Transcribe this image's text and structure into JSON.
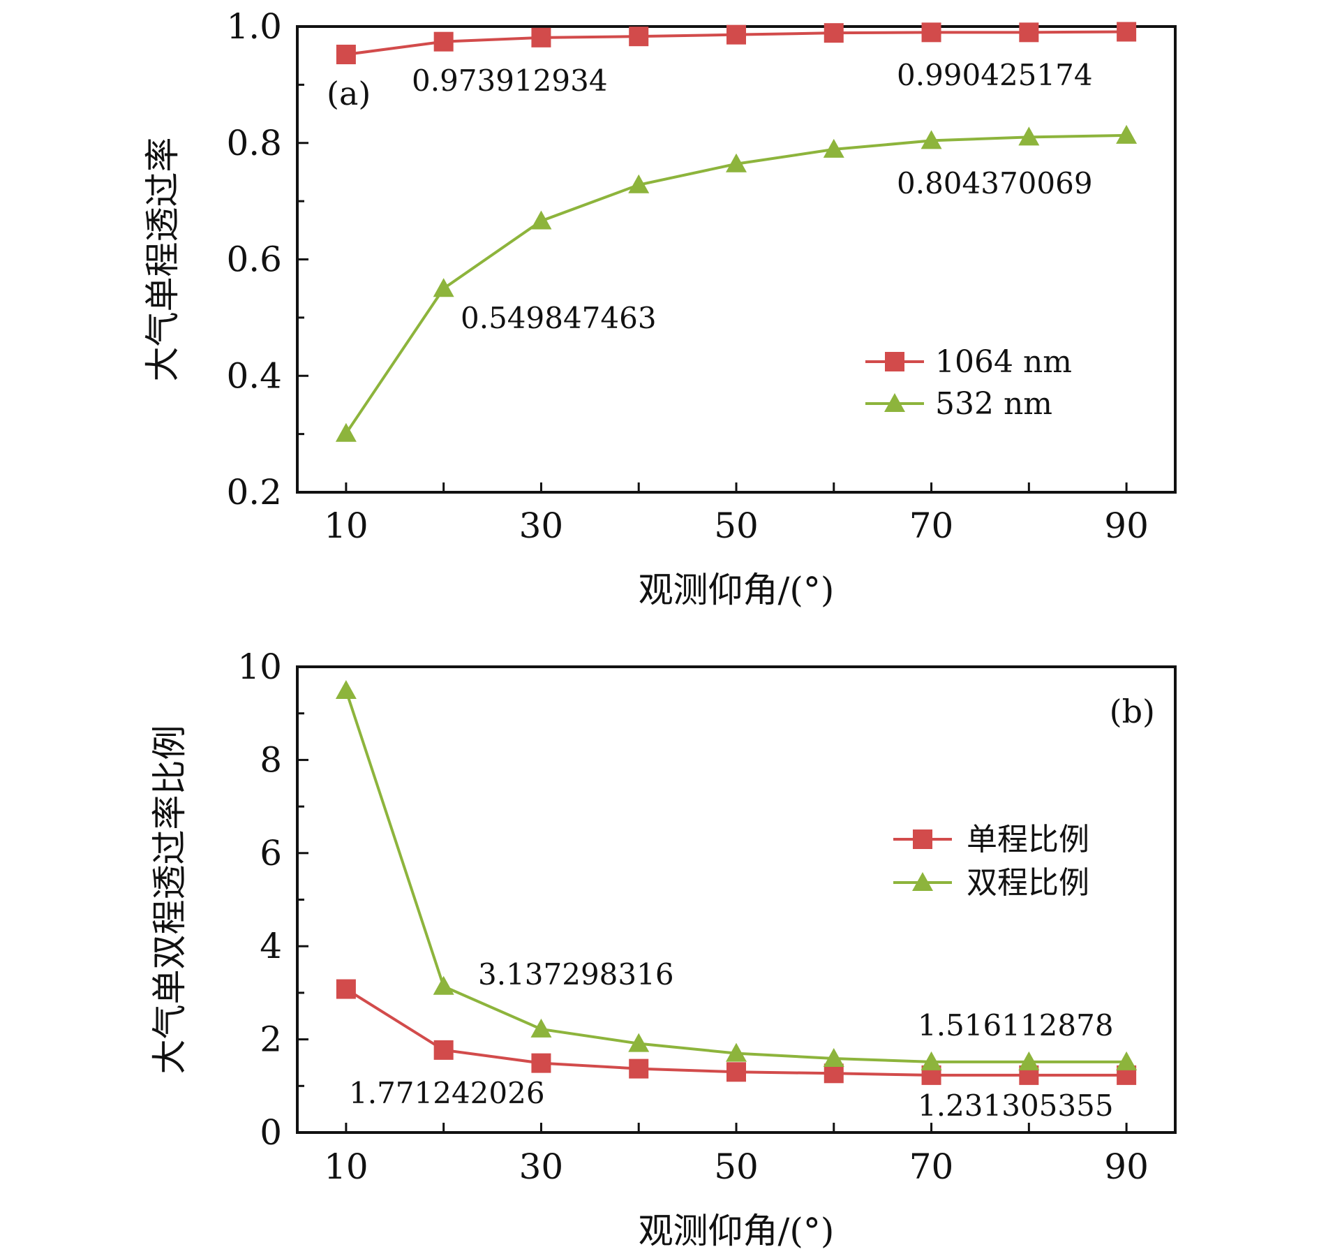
{
  "chart_data": [
    {
      "type": "line",
      "panel_label": "(a)",
      "xlabel": "观测仰角/(°)",
      "ylabel": "大气单程透过率",
      "xlim": [
        5,
        95
      ],
      "ylim": [
        0.2,
        1.0
      ],
      "x": [
        10,
        20,
        30,
        40,
        50,
        60,
        70,
        80,
        90
      ],
      "x_ticks": [
        10,
        30,
        50,
        70,
        90
      ],
      "y_ticks": [
        0.2,
        0.4,
        0.6,
        0.8,
        1.0
      ],
      "y_tick_labels": [
        "0.2",
        "0.4",
        "0.6",
        "0.8",
        "1.0"
      ],
      "series": [
        {
          "name": "1064 nm",
          "marker": "square",
          "color": "#d24b4b",
          "values": [
            0.952,
            0.974,
            0.981,
            0.983,
            0.986,
            0.989,
            0.99,
            0.99,
            0.991
          ]
        },
        {
          "name": "532 nm",
          "marker": "triangle",
          "color": "#8db43c",
          "values": [
            0.301,
            0.55,
            0.666,
            0.728,
            0.764,
            0.789,
            0.804,
            0.81,
            0.813
          ]
        }
      ],
      "annotations": [
        {
          "text": "0.973912934",
          "x": 20,
          "y": 0.974
        },
        {
          "text": "0.990425174",
          "x": 70,
          "y": 0.99
        },
        {
          "text": "0.804370069",
          "x": 70,
          "y": 0.804
        },
        {
          "text": "0.549847463",
          "x": 20,
          "y": 0.55
        }
      ],
      "legend_position": "lower-right",
      "grid": false
    },
    {
      "type": "line",
      "panel_label": "(b)",
      "xlabel": "观测仰角/(°)",
      "ylabel": "大气单双程透过率比例",
      "xlim": [
        5,
        95
      ],
      "ylim": [
        0,
        10
      ],
      "x": [
        10,
        20,
        30,
        40,
        50,
        60,
        70,
        80,
        90
      ],
      "x_ticks": [
        10,
        30,
        50,
        70,
        90
      ],
      "y_ticks": [
        0,
        2,
        4,
        6,
        8,
        10
      ],
      "y_tick_labels": [
        "0",
        "2",
        "4",
        "6",
        "8",
        "10"
      ],
      "series": [
        {
          "name": "单程比例",
          "marker": "square",
          "color": "#d24b4b",
          "values": [
            3.08,
            1.771,
            1.49,
            1.37,
            1.3,
            1.27,
            1.231,
            1.231,
            1.231
          ]
        },
        {
          "name": "双程比例",
          "marker": "triangle",
          "color": "#8db43c",
          "values": [
            9.49,
            3.137,
            2.22,
            1.91,
            1.7,
            1.59,
            1.516,
            1.516,
            1.516
          ]
        }
      ],
      "annotations": [
        {
          "text": "3.137298316",
          "x": 20,
          "y": 3.137
        },
        {
          "text": "1.771242026",
          "x": 20,
          "y": 1.771
        },
        {
          "text": "1.516112878",
          "x": 70,
          "y": 1.516
        },
        {
          "text": "1.231305355",
          "x": 70,
          "y": 1.231
        }
      ],
      "legend_position": "upper-right",
      "grid": false
    }
  ]
}
